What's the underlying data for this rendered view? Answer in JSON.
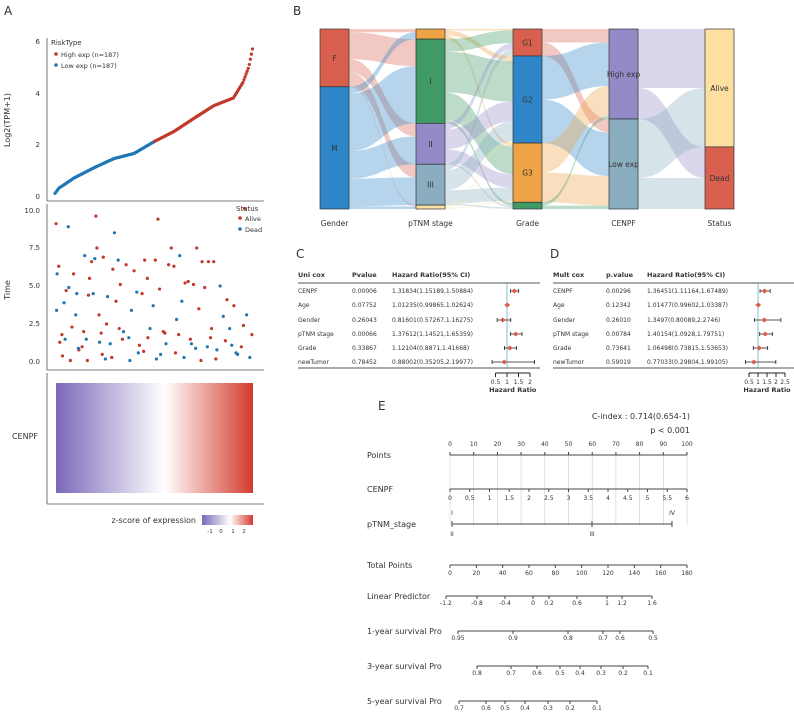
{
  "panel_labels": {
    "a": "A",
    "b": "B",
    "c": "C",
    "d": "D",
    "e": "E"
  },
  "chart_data": [
    {
      "type": "scatter",
      "panel": "A-top",
      "ylabel": "Log2(TPM+1)",
      "yticks": [
        "0",
        "2",
        "4",
        "6"
      ],
      "ylim": [
        0,
        6
      ],
      "legend_title": "RiskType",
      "legend_placement": "top-left",
      "series": [
        {
          "name": "High exp (n=187)",
          "color": "#c0392b"
        },
        {
          "name": "Low exp (n=187)",
          "color": "#1f77b4"
        }
      ],
      "n": 374,
      "curve_anchors": [
        [
          1,
          0.1
        ],
        [
          8,
          0.3
        ],
        [
          19,
          0.45
        ],
        [
          37,
          0.7
        ],
        [
          75,
          1.1
        ],
        [
          112,
          1.45
        ],
        [
          150,
          1.65
        ],
        [
          187,
          2.1
        ],
        [
          225,
          2.5
        ],
        [
          262,
          3.0
        ],
        [
          300,
          3.5
        ],
        [
          337,
          3.8
        ],
        [
          355,
          4.4
        ],
        [
          366,
          5.0
        ],
        [
          374,
          5.8
        ]
      ]
    },
    {
      "type": "scatter",
      "panel": "A-middle",
      "ylabel": "Time",
      "yticks": [
        "0.0",
        "2.5",
        "5.0",
        "7.5",
        "10.0"
      ],
      "ylim": [
        0,
        10
      ],
      "legend_title": "Status",
      "legend_placement": "top-right",
      "series": [
        {
          "name": "Alive",
          "color": "#c0392b"
        },
        {
          "name": "Dead",
          "color": "#1f77b4"
        }
      ],
      "points": [
        [
          3,
          9.1,
          "Alive"
        ],
        [
          5,
          5.8,
          "Dead"
        ],
        [
          8,
          6.3,
          "Alive"
        ],
        [
          4,
          3.4,
          "Dead"
        ],
        [
          10,
          1.3,
          "Alive"
        ],
        [
          14,
          1.8,
          "Alive"
        ],
        [
          18,
          3.9,
          "Dead"
        ],
        [
          22,
          4.7,
          "Alive"
        ],
        [
          26,
          8.9,
          "Dead"
        ],
        [
          27,
          4.9,
          "Dead"
        ],
        [
          30,
          0.1,
          "Alive"
        ],
        [
          33,
          2.3,
          "Alive"
        ],
        [
          36,
          5.8,
          "Alive"
        ],
        [
          40,
          3.1,
          "Dead"
        ],
        [
          42,
          4.5,
          "Dead"
        ],
        [
          46,
          0.8,
          "Alive"
        ],
        [
          52,
          1.0,
          "Alive"
        ],
        [
          57,
          7.0,
          "Dead"
        ],
        [
          60,
          1.5,
          "Dead"
        ],
        [
          64,
          4.4,
          "Alive"
        ],
        [
          66,
          5.5,
          "Alive"
        ],
        [
          70,
          6.6,
          "Alive"
        ],
        [
          73,
          4.5,
          "Dead"
        ],
        [
          76,
          6.8,
          "Dead"
        ],
        [
          78,
          9.6,
          "Alive"
        ],
        [
          80,
          7.5,
          "Alive"
        ],
        [
          84,
          3.1,
          "Alive"
        ],
        [
          88,
          1.9,
          "Alive"
        ],
        [
          92,
          6.9,
          "Alive"
        ],
        [
          96,
          0.2,
          "Dead"
        ],
        [
          100,
          4.3,
          "Dead"
        ],
        [
          105,
          1.2,
          "Dead"
        ],
        [
          110,
          6.1,
          "Alive"
        ],
        [
          113,
          8.5,
          "Dead"
        ],
        [
          116,
          4.0,
          "Alive"
        ],
        [
          120,
          6.7,
          "Dead"
        ],
        [
          124,
          5.1,
          "Alive"
        ],
        [
          130,
          2.0,
          "Dead"
        ],
        [
          135,
          6.4,
          "Alive"
        ],
        [
          140,
          1.6,
          "Dead"
        ],
        [
          145,
          3.4,
          "Dead"
        ],
        [
          150,
          6.0,
          "Alive"
        ],
        [
          155,
          4.6,
          "Dead"
        ],
        [
          160,
          1.1,
          "Alive"
        ],
        [
          165,
          4.5,
          "Alive"
        ],
        [
          170,
          6.7,
          "Alive"
        ],
        [
          175,
          5.5,
          "Alive"
        ],
        [
          180,
          2.2,
          "Dead"
        ],
        [
          186,
          3.7,
          "Dead"
        ],
        [
          190,
          6.7,
          "Alive"
        ],
        [
          195,
          9.4,
          "Alive"
        ],
        [
          198,
          4.8,
          "Alive"
        ],
        [
          205,
          2.0,
          "Alive"
        ],
        [
          210,
          1.2,
          "Dead"
        ],
        [
          215,
          6.4,
          "Alive"
        ],
        [
          220,
          7.5,
          "Alive"
        ],
        [
          225,
          6.3,
          "Alive"
        ],
        [
          230,
          2.8,
          "Dead"
        ],
        [
          236,
          7.0,
          "Dead"
        ],
        [
          240,
          4.0,
          "Dead"
        ],
        [
          246,
          5.2,
          "Alive"
        ],
        [
          252,
          5.3,
          "Alive"
        ],
        [
          258,
          1.2,
          "Dead"
        ],
        [
          262,
          5.1,
          "Alive"
        ],
        [
          268,
          7.5,
          "Alive"
        ],
        [
          272,
          3.5,
          "Alive"
        ],
        [
          278,
          6.6,
          "Alive"
        ],
        [
          283,
          4.9,
          "Alive"
        ],
        [
          290,
          6.6,
          "Alive"
        ],
        [
          296,
          2.2,
          "Alive"
        ],
        [
          300,
          6.6,
          "Alive"
        ],
        [
          306,
          0.8,
          "Dead"
        ],
        [
          312,
          5.0,
          "Dead"
        ],
        [
          318,
          3.0,
          "Dead"
        ],
        [
          325,
          4.1,
          "Alive"
        ],
        [
          330,
          2.2,
          "Dead"
        ],
        [
          338,
          3.7,
          "Alive"
        ],
        [
          345,
          0.5,
          "Dead"
        ],
        [
          352,
          1.0,
          "Alive"
        ],
        [
          358,
          10.1,
          "Alive"
        ],
        [
          362,
          3.1,
          "Dead"
        ],
        [
          368,
          0.3,
          "Dead"
        ],
        [
          372,
          1.8,
          "Alive"
        ],
        [
          15,
          0.4,
          "Alive"
        ],
        [
          45,
          0.9,
          "Dead"
        ],
        [
          62,
          0.1,
          "Alive"
        ],
        [
          85,
          1.3,
          "Dead"
        ],
        [
          98,
          2.5,
          "Alive"
        ],
        [
          108,
          0.3,
          "Alive"
        ],
        [
          122,
          2.2,
          "Alive"
        ],
        [
          142,
          0.1,
          "Dead"
        ],
        [
          158,
          0.6,
          "Dead"
        ],
        [
          176,
          1.6,
          "Alive"
        ],
        [
          192,
          0.2,
          "Dead"
        ],
        [
          208,
          1.9,
          "Alive"
        ],
        [
          228,
          0.6,
          "Alive"
        ],
        [
          244,
          0.3,
          "Dead"
        ],
        [
          256,
          1.5,
          "Alive"
        ],
        [
          276,
          0.1,
          "Alive"
        ],
        [
          288,
          1.0,
          "Dead"
        ],
        [
          304,
          0.2,
          "Alive"
        ],
        [
          322,
          1.4,
          "Alive"
        ],
        [
          342,
          0.6,
          "Dead"
        ],
        [
          20,
          1.5,
          "Dead"
        ],
        [
          55,
          2.0,
          "Alive"
        ],
        [
          90,
          0.5,
          "Alive"
        ],
        [
          128,
          1.5,
          "Alive"
        ],
        [
          168,
          0.7,
          "Alive"
        ],
        [
          200,
          0.5,
          "Dead"
        ],
        [
          234,
          1.8,
          "Alive"
        ],
        [
          266,
          0.9,
          "Dead"
        ],
        [
          294,
          1.6,
          "Alive"
        ],
        [
          334,
          1.1,
          "Dead"
        ],
        [
          356,
          2.4,
          "Alive"
        ]
      ]
    },
    {
      "type": "heatmap",
      "panel": "A-bottom",
      "row_label": "CENPF",
      "legend_title": "z-score of expression",
      "legend_ticks": [
        "-1",
        "0",
        "1",
        "2"
      ],
      "colors": {
        "low": "#7b68b8",
        "mid": "#ffffff",
        "high": "#d33b2c"
      }
    },
    {
      "type": "sankey",
      "panel": "B",
      "axes": [
        {
          "label": "Gender",
          "nodes": [
            {
              "name": "F",
              "value": 120,
              "color": "#d9604f"
            },
            {
              "name": "M",
              "value": 254,
              "color": "#2e86c8"
            }
          ]
        },
        {
          "label": "pTNM stage",
          "nodes": [
            {
              "name": "",
              "value": 21,
              "color": "#eea346"
            },
            {
              "name": "I",
              "value": 175,
              "color": "#3f9a65"
            },
            {
              "name": "II",
              "value": 85,
              "color": "#958ac8"
            },
            {
              "name": "III",
              "value": 85,
              "color": "#8aaebf"
            },
            {
              "name": "",
              "value": 8,
              "color": "#fae2a6"
            }
          ]
        },
        {
          "label": "Grade",
          "nodes": [
            {
              "name": "G1",
              "value": 56,
              "color": "#d9604f"
            },
            {
              "name": "G2",
              "value": 181,
              "color": "#2e86c8"
            },
            {
              "name": "G3",
              "value": 123,
              "color": "#eea346"
            },
            {
              "name": "",
              "value": 14,
              "color": "#3f9a65"
            }
          ]
        },
        {
          "label": "CENPF",
          "nodes": [
            {
              "name": "High exp",
              "value": 187,
              "color": "#958ac8"
            },
            {
              "name": "Low exp",
              "value": 187,
              "color": "#8aaebf"
            }
          ]
        },
        {
          "label": "Status",
          "nodes": [
            {
              "name": "Alive",
              "value": 245,
              "color": "#fde0a1"
            },
            {
              "name": "Dead",
              "value": 129,
              "color": "#d9604f"
            }
          ]
        }
      ]
    },
    {
      "type": "table",
      "panel": "C",
      "headers": [
        "Uni cox",
        "Pvalue",
        "Hazard Ratio(95% CI)"
      ],
      "rows": [
        {
          "name": "CENPF",
          "p": "0.00006",
          "hr_text": "1.31834(1.15189,1.50884)",
          "hr": 1.31834,
          "lo": 1.15189,
          "hi": 1.50884
        },
        {
          "name": "Age",
          "p": "0.07752",
          "hr_text": "1.01235(0.99865,1.02624)",
          "hr": 1.01235,
          "lo": 0.99865,
          "hi": 1.02624
        },
        {
          "name": "Gender",
          "p": "0.26043",
          "hr_text": "0.81601(0.57267,1.16275)",
          "hr": 0.81601,
          "lo": 0.57267,
          "hi": 1.16275
        },
        {
          "name": "pTNM stage",
          "p": "0.00066",
          "hr_text": "1.37612(1.14521,1.65359)",
          "hr": 1.37612,
          "lo": 1.14521,
          "hi": 1.65359
        },
        {
          "name": "Grade",
          "p": "0.33867",
          "hr_text": "1.12104(0.8871,1.41668)",
          "hr": 1.12104,
          "lo": 0.8871,
          "hi": 1.41668
        },
        {
          "name": "newTumor",
          "p": "0.78452",
          "hr_text": "0.88002(0.35205,2.19977)",
          "hr": 0.88002,
          "lo": 0.35205,
          "hi": 2.19977
        }
      ],
      "xticks": [
        0.5,
        1,
        1.5,
        2
      ],
      "xlabel": "Hazard Ratio"
    },
    {
      "type": "table",
      "panel": "D",
      "headers": [
        "Mult cox",
        "p.value",
        "Hazard Ratio(95% CI)"
      ],
      "rows": [
        {
          "name": "CENPF",
          "p": "0.00296",
          "hr_text": "1.36451(1.11164,1.67489)",
          "hr": 1.36451,
          "lo": 1.11164,
          "hi": 1.67489
        },
        {
          "name": "Age",
          "p": "0.12342",
          "hr_text": "1.01477(0.99602,1.03387)",
          "hr": 1.01477,
          "lo": 0.99602,
          "hi": 1.03387
        },
        {
          "name": "Gender",
          "p": "0.26010",
          "hr_text": "1.3497(0.80089,2.2746)",
          "hr": 1.3497,
          "lo": 0.80089,
          "hi": 2.2746
        },
        {
          "name": "pTNM stage",
          "p": "0.00784",
          "hr_text": "1.40154(1.0928,1.79751)",
          "hr": 1.40154,
          "lo": 1.0928,
          "hi": 1.79751
        },
        {
          "name": "Grade",
          "p": "0.73641",
          "hr_text": "1.06498(0.73815,1.53653)",
          "hr": 1.06498,
          "lo": 0.73815,
          "hi": 1.53653
        },
        {
          "name": "newTumor",
          "p": "0.59019",
          "hr_text": "0.77033(0.29804,1.99105)",
          "hr": 0.77033,
          "lo": 0.29804,
          "hi": 1.99105
        }
      ],
      "xticks": [
        0.5,
        1,
        1.5,
        2,
        2.5
      ],
      "xlabel": "Hazard Ratio"
    },
    {
      "type": "nomogram",
      "panel": "E",
      "c_index": "C-index : 0.714(0.654-1)",
      "p_value": "p < 0.001",
      "scales": [
        {
          "label": "Points",
          "ticks": [
            "0",
            "10",
            "20",
            "30",
            "40",
            "50",
            "60",
            "70",
            "80",
            "90",
            "100"
          ]
        },
        {
          "label": "CENPF",
          "ticks": [
            "0",
            "0.5",
            "1",
            "1.5",
            "2",
            "2.5",
            "3",
            "3.5",
            "4",
            "4.5",
            "5",
            "5.5",
            "6"
          ]
        },
        {
          "label": "pTNM_stage",
          "ticks_above": [
            "I",
            "IV"
          ],
          "ticks_below": [
            "II",
            "III"
          ]
        },
        {
          "label": "Total Points",
          "ticks": [
            "0",
            "20",
            "40",
            "60",
            "80",
            "100",
            "120",
            "140",
            "160",
            "180"
          ]
        },
        {
          "label": "Linear Predictor",
          "ticks": [
            "-1.2",
            "-0.8",
            "-0.4",
            "0",
            "0.2",
            "0.6",
            "1",
            "1.2",
            "1.6"
          ]
        },
        {
          "label": "1-year survival Pro",
          "ticks": [
            "0.95",
            "0.9",
            "0.8",
            "0.7",
            "0.6",
            "0.5"
          ]
        },
        {
          "label": "3-year survival Pro",
          "ticks": [
            "0.8",
            "0.7",
            "0.6",
            "0.5",
            "0.4",
            "0.3",
            "0.2",
            "0.1"
          ]
        },
        {
          "label": "5-year survival Pro",
          "ticks": [
            "0.7",
            "0.6",
            "0.5",
            "0.4",
            "0.3",
            "0.2",
            "0.1"
          ]
        }
      ]
    }
  ]
}
